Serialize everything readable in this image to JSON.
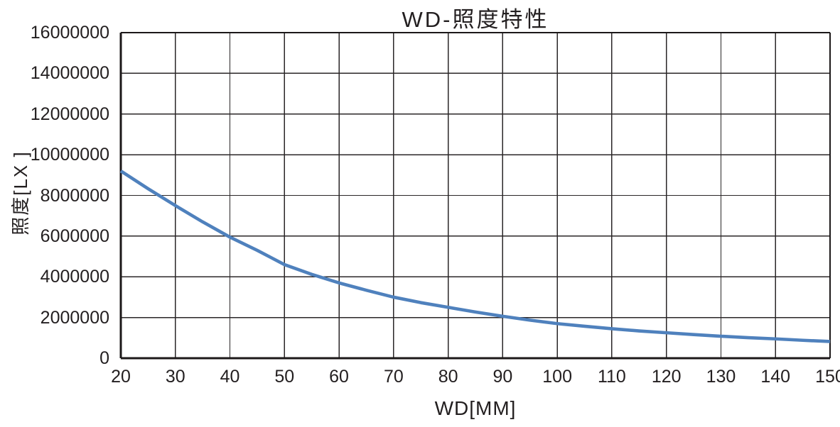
{
  "chart_data": {
    "type": "line",
    "title": "WD-照度特性",
    "xlabel": "WD[MM]",
    "ylabel": "照度[LX ]",
    "xlim": [
      20,
      150
    ],
    "ylim": [
      0,
      16000000
    ],
    "x_ticks": [
      20,
      30,
      40,
      50,
      60,
      70,
      80,
      90,
      100,
      110,
      120,
      130,
      140,
      150
    ],
    "y_ticks": [
      0,
      2000000,
      4000000,
      6000000,
      8000000,
      10000000,
      12000000,
      14000000,
      16000000
    ],
    "grid": true,
    "legend": false,
    "series": [
      {
        "name": "照度",
        "x": [
          20,
          25,
          30,
          35,
          40,
          45,
          50,
          55,
          60,
          65,
          70,
          75,
          80,
          85,
          90,
          95,
          100,
          105,
          110,
          115,
          120,
          125,
          130,
          135,
          140,
          145,
          150
        ],
        "values": [
          9200000,
          8330000,
          7500000,
          6700000,
          5950000,
          5300000,
          4600000,
          4120000,
          3700000,
          3340000,
          3000000,
          2730000,
          2500000,
          2270000,
          2060000,
          1870000,
          1700000,
          1570000,
          1450000,
          1340000,
          1250000,
          1160000,
          1080000,
          1010000,
          950000,
          880000,
          820000
        ]
      }
    ],
    "colors": {
      "line": "#4f81bd",
      "grid": "#2a2627",
      "axis": "#1c1819",
      "text": "#231f20",
      "background": "#ffffff"
    }
  }
}
